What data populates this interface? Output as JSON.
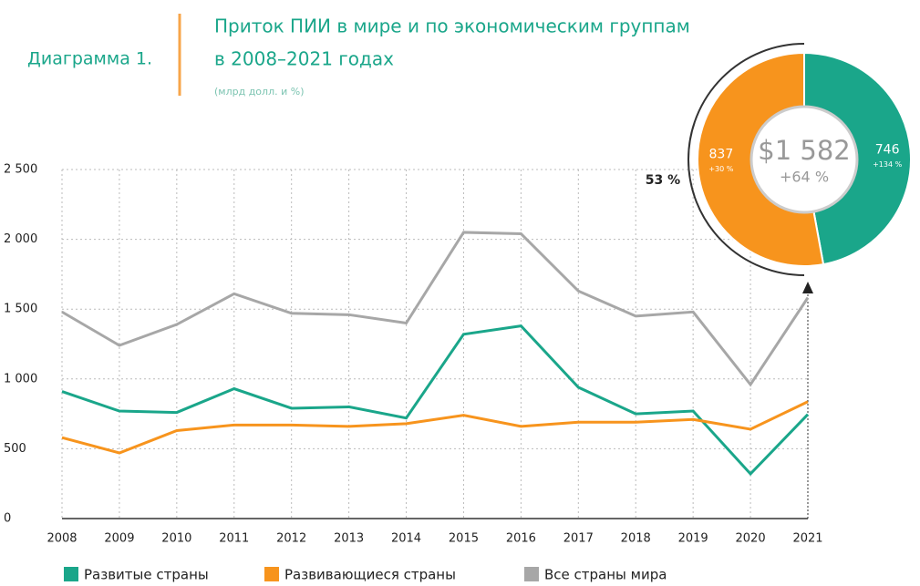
{
  "chart_data": [
    {
      "type": "line",
      "label": "Диаграмма 1.",
      "title": [
        "Приток ПИИ в мире и по экономическим группам",
        "в 2008–2021 годах"
      ],
      "subtitle": "(млрд долл. и %)",
      "categories": [
        "2008",
        "2009",
        "2010",
        "2011",
        "2012",
        "2013",
        "2014",
        "2015",
        "2016",
        "2017",
        "2018",
        "2019",
        "2020",
        "2021"
      ],
      "series": [
        {
          "name": "Развитые страны",
          "color": "#1aa68a",
          "values": [
            910,
            770,
            760,
            930,
            790,
            800,
            720,
            1320,
            1380,
            940,
            750,
            770,
            320,
            746
          ]
        },
        {
          "name": "Развивающиеся страны",
          "color": "#f7941d",
          "values": [
            580,
            470,
            630,
            670,
            670,
            660,
            680,
            740,
            660,
            690,
            690,
            710,
            640,
            837
          ]
        },
        {
          "name": "Все страны мира",
          "color": "#a7a7a7",
          "values": [
            1480,
            1240,
            1390,
            1610,
            1470,
            1460,
            1400,
            2050,
            2040,
            1630,
            1450,
            1480,
            960,
            1582
          ]
        }
      ],
      "ylim": [
        0,
        2500
      ],
      "yticks": [
        0,
        500,
        {
          "value": 1000,
          "label": "1 000"
        },
        {
          "value": 1500,
          "label": "1 500"
        },
        {
          "value": 2000,
          "label": "2 000"
        },
        {
          "value": 2500,
          "label": "2 500"
        }
      ],
      "grid": true
    },
    {
      "type": "pie",
      "values": [
        746,
        837
      ],
      "colors": [
        "#1aa68a",
        "#f7941d"
      ],
      "value_labels": [
        "746",
        "837"
      ],
      "change_labels": [
        "+134 %",
        "+30 %"
      ],
      "total_label": "$1 582",
      "total_change": "+64 %",
      "share_label": "53 %"
    }
  ]
}
